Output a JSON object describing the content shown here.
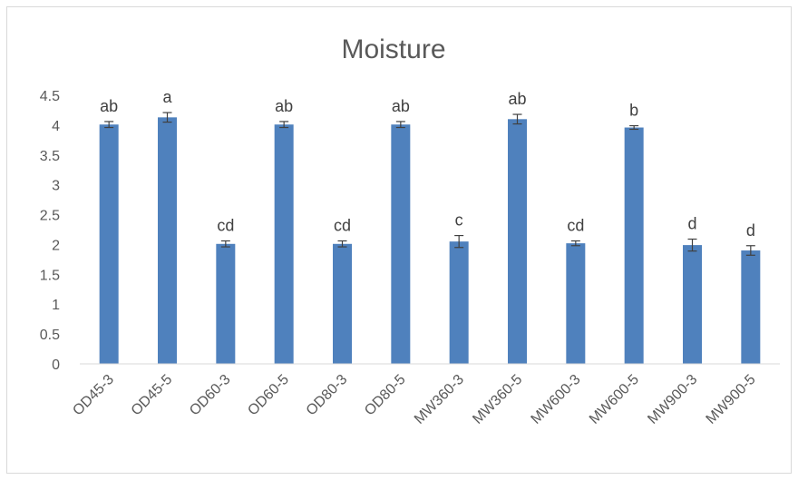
{
  "chart_data": {
    "type": "bar",
    "title": "Moisture",
    "xlabel": "",
    "ylabel": "",
    "categories": [
      "OD45-3",
      "OD45-5",
      "OD60-3",
      "OD60-5",
      "OD80-3",
      "OD80-5",
      "MW360-3",
      "MW360-5",
      "MW600-3",
      "MW600-5",
      "MW900-3",
      "MW900-5"
    ],
    "values": [
      4.01,
      4.13,
      2.01,
      4.01,
      2.01,
      4.01,
      2.05,
      4.1,
      2.02,
      3.96,
      1.99,
      1.9
    ],
    "errors": [
      0.05,
      0.08,
      0.05,
      0.05,
      0.05,
      0.05,
      0.1,
      0.08,
      0.04,
      0.03,
      0.1,
      0.08
    ],
    "significance_labels": [
      "ab",
      "a",
      "cd",
      "ab",
      "cd",
      "ab",
      "c",
      "ab",
      "cd",
      "b",
      "d",
      "d"
    ],
    "ylim": [
      0,
      4.5
    ],
    "yticks": [
      "0",
      "0.5",
      "1",
      "1.5",
      "2",
      "2.5",
      "3",
      "3.5",
      "4",
      "4.5"
    ],
    "grid": false,
    "legend": "none",
    "colors": {
      "bar": "#4f81bd",
      "error_bar": "#404040",
      "axis": "#d9d9d9",
      "text": "#595959"
    }
  }
}
